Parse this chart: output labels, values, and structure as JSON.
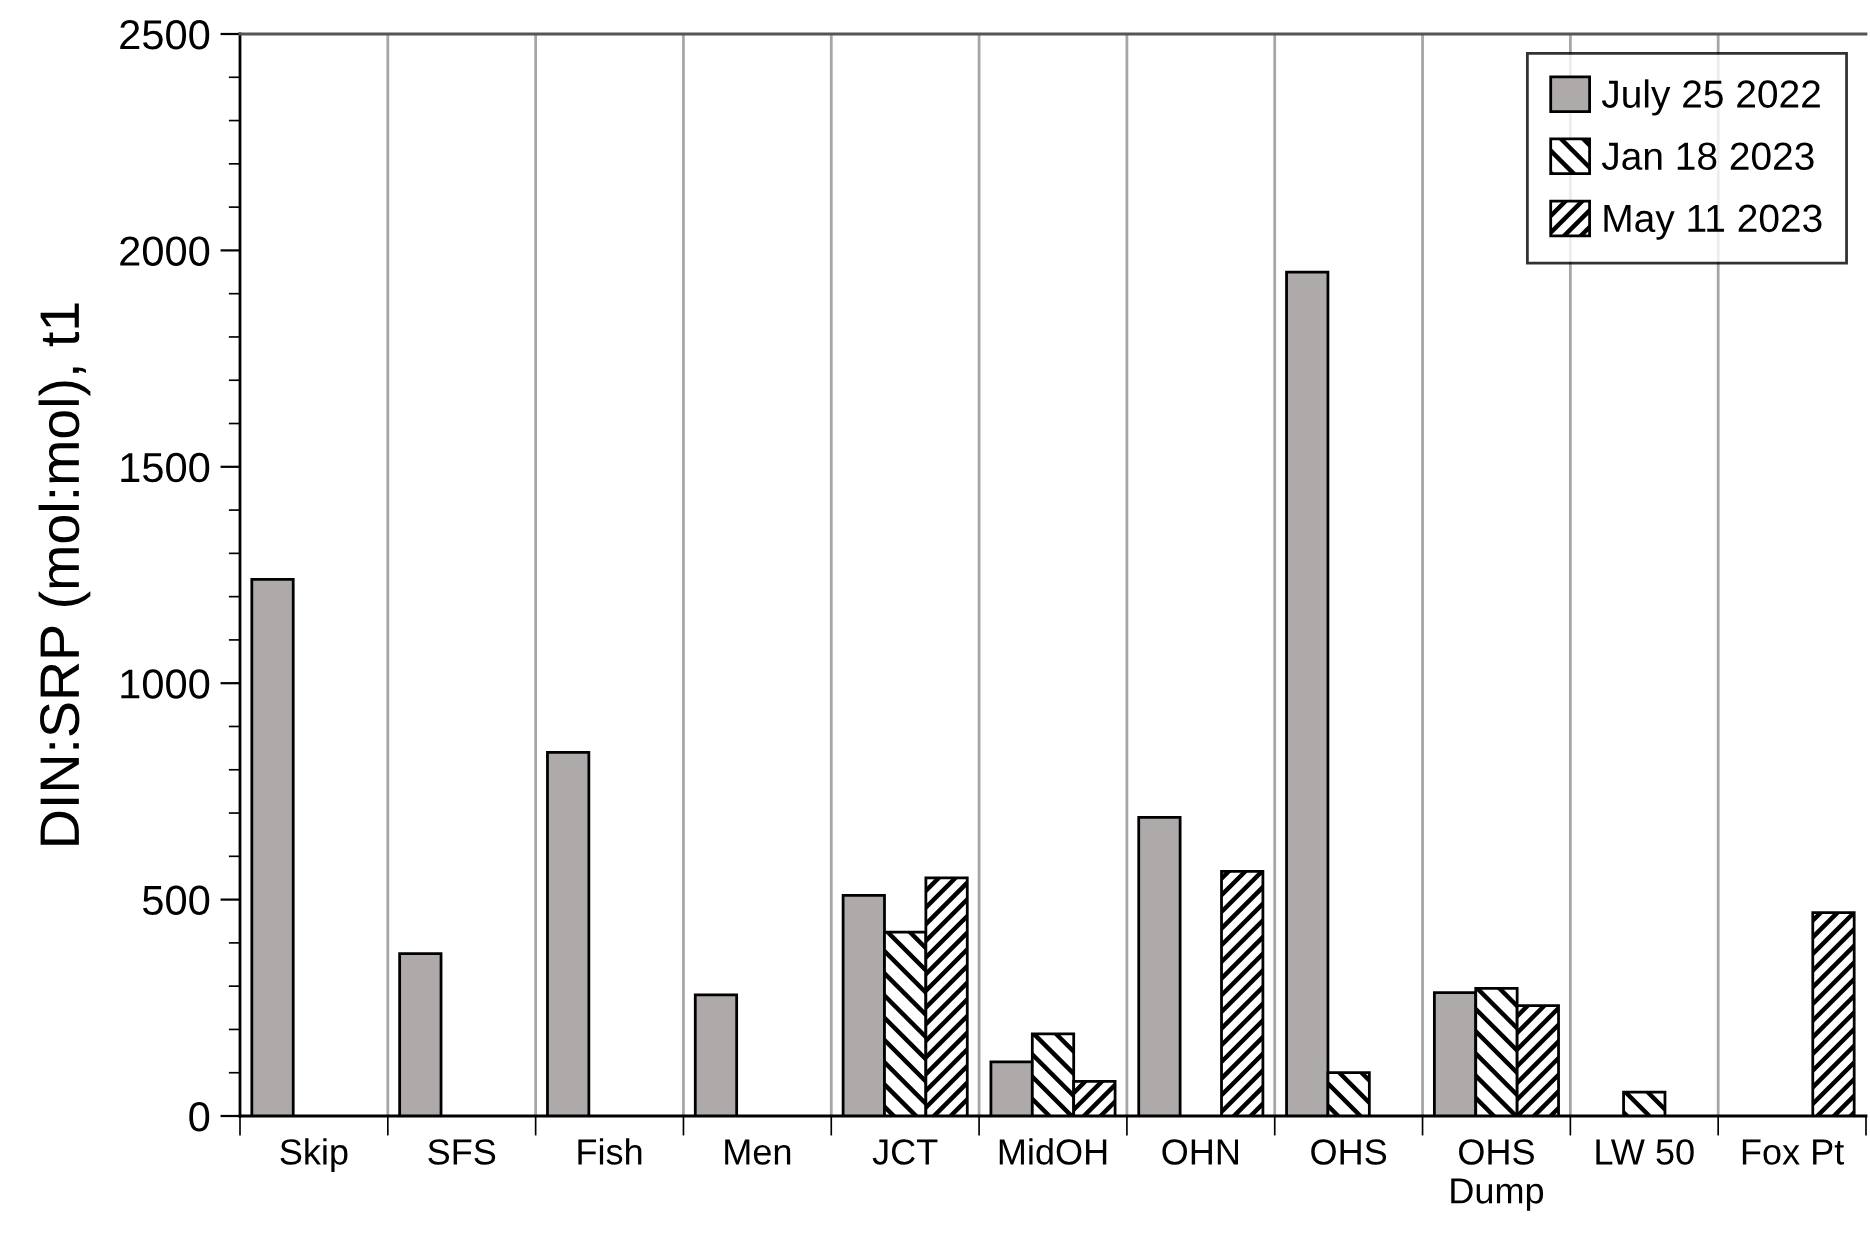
{
  "chart_data": {
    "type": "bar",
    "ylabel": "DIN:SRP (mol:mol), t1",
    "categories": [
      "Skip",
      "SFS",
      "Fish",
      "Men",
      "JCT",
      "MidOH",
      "OHN",
      "OHS",
      "OHS\nDump",
      "LW 50",
      "Fox Pt"
    ],
    "series": [
      {
        "name": "July 25 2022",
        "color": "#aeaaaa",
        "values": [
          1240,
          375,
          840,
          280,
          510,
          125,
          690,
          1950,
          285,
          null,
          null
        ]
      },
      {
        "name": "Jan 18 2023",
        "color": "#000000",
        "values": [
          null,
          null,
          null,
          null,
          425,
          190,
          null,
          100,
          295,
          55,
          null
        ]
      },
      {
        "name": "May 11 2023",
        "color": "#000000",
        "values": [
          null,
          null,
          null,
          null,
          550,
          80,
          565,
          null,
          255,
          null,
          470
        ]
      }
    ],
    "ylim": [
      0,
      2500
    ],
    "yticks": [
      0,
      500,
      1000,
      1500,
      2000,
      2500
    ],
    "grid": "x",
    "legend": "top right"
  }
}
